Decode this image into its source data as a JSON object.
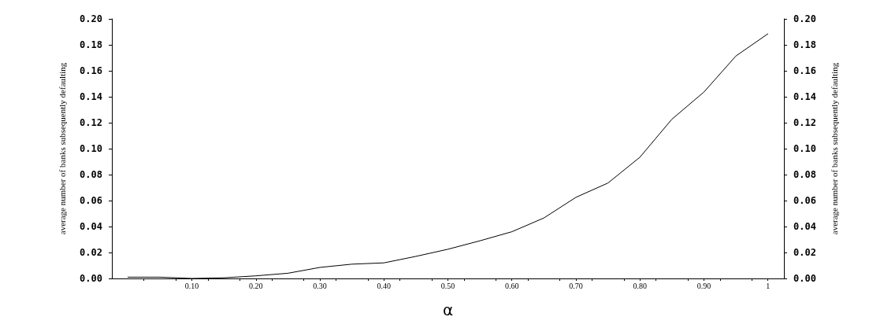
{
  "chart_data": {
    "type": "line",
    "xlabel": "α",
    "ylabel": "average number of banks subsequently defaulting",
    "y2label": "average number of banks subsequently defaulting",
    "x": [
      0,
      0.05,
      0.1,
      0.15,
      0.2,
      0.25,
      0.3,
      0.35,
      0.4,
      0.45,
      0.5,
      0.55,
      0.6,
      0.65,
      0.7,
      0.75,
      0.8,
      0.85,
      0.9,
      0.95,
      1
    ],
    "series": [
      {
        "color": "#000000",
        "values": [
          0.001,
          0.001,
          0,
          0.0005,
          0.002,
          0.004,
          0.0085,
          0.011,
          0.012,
          0.017,
          0.0225,
          0.029,
          0.036,
          0.0466,
          0.0625,
          0.0735,
          0.0934,
          0.1227,
          0.1436,
          0.1714,
          0.1885
        ]
      }
    ],
    "xlim": [
      -0.025,
      1.025
    ],
    "xticks": [
      {
        "value": 0.025,
        "label": null
      },
      {
        "value": 0.075,
        "label": null
      },
      {
        "value": 0.1,
        "label": "0.10"
      },
      {
        "value": 0.125,
        "label": null
      },
      {
        "value": 0.175,
        "label": null
      },
      {
        "value": 0.2,
        "label": "0.20"
      },
      {
        "value": 0.225,
        "label": null
      },
      {
        "value": 0.275,
        "label": null
      },
      {
        "value": 0.3,
        "label": "0.30"
      },
      {
        "value": 0.325,
        "label": null
      },
      {
        "value": 0.375,
        "label": null
      },
      {
        "value": 0.4,
        "label": "0.40"
      },
      {
        "value": 0.425,
        "label": null
      },
      {
        "value": 0.475,
        "label": null
      },
      {
        "value": 0.5,
        "label": "0.50"
      },
      {
        "value": 0.525,
        "label": null
      },
      {
        "value": 0.575,
        "label": null
      },
      {
        "value": 0.6,
        "label": "0.60"
      },
      {
        "value": 0.625,
        "label": null
      },
      {
        "value": 0.675,
        "label": null
      },
      {
        "value": 0.7,
        "label": "0.70"
      },
      {
        "value": 0.725,
        "label": null
      },
      {
        "value": 0.775,
        "label": null
      },
      {
        "value": 0.8,
        "label": "0.80"
      },
      {
        "value": 0.825,
        "label": null
      },
      {
        "value": 0.875,
        "label": null
      },
      {
        "value": 0.9,
        "label": "0.90"
      },
      {
        "value": 0.925,
        "label": null
      },
      {
        "value": 0.975,
        "label": null
      },
      1
    ],
    "ylim": [
      0,
      0.2
    ],
    "yticks": [
      {
        "value": 0,
        "label": "0.00"
      },
      {
        "value": 0.02,
        "label": "0.02"
      },
      {
        "value": 0.04,
        "label": "0.04"
      },
      {
        "value": 0.06,
        "label": "0.06"
      },
      {
        "value": 0.08,
        "label": "0.08"
      },
      {
        "value": 0.1,
        "label": "0.10"
      },
      {
        "value": 0.12,
        "label": "0.12"
      },
      {
        "value": 0.14,
        "label": "0.14"
      },
      {
        "value": 0.16,
        "label": "0.16"
      },
      {
        "value": 0.18,
        "label": "0.18"
      },
      {
        "value": 0.2,
        "label": "0.20"
      }
    ],
    "y2lim": [
      0,
      0.2
    ],
    "y2ticks": [
      {
        "value": 0,
        "label": "0.00"
      },
      {
        "value": 0.02,
        "label": "0.02"
      },
      {
        "value": 0.04,
        "label": "0.04"
      },
      {
        "value": 0.06,
        "label": "0.06"
      },
      {
        "value": 0.08,
        "label": "0.08"
      },
      {
        "value": 0.1,
        "label": "0.10"
      },
      {
        "value": 0.12,
        "label": "0.12"
      },
      {
        "value": 0.14,
        "label": "0.14"
      },
      {
        "value": 0.16,
        "label": "0.16"
      },
      {
        "value": 0.18,
        "label": "0.18"
      },
      {
        "value": 0.2,
        "label": "0.20"
      }
    ],
    "grid": false,
    "marker": "none",
    "line_style": "solid"
  }
}
